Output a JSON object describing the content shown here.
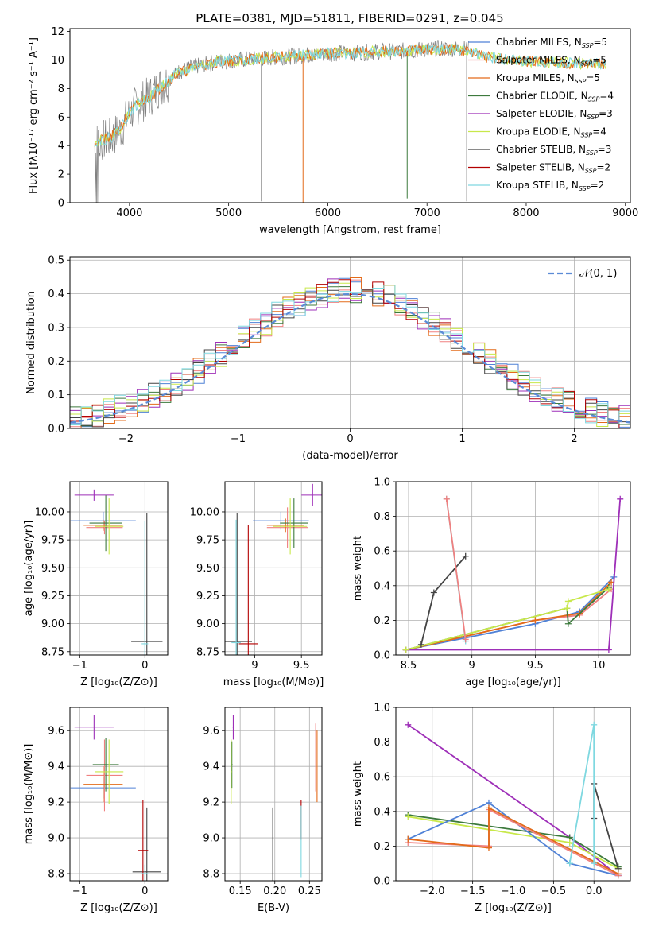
{
  "colors": {
    "chabrier_miles": "#4f81d6",
    "salpeter_miles": "#f08080",
    "kroupa_miles": "#e36b1a",
    "chabrier_elodie": "#3d7a3d",
    "salpeter_elodie": "#9e2fb8",
    "kroupa_elodie": "#c8e84a",
    "chabrier_stelib": "#444444",
    "salpeter_stelib": "#b30000",
    "kroupa_stelib": "#7fd8e0",
    "spectrum": "#808080",
    "normal": "#5b8bd6",
    "grid": "#b0b0b0"
  },
  "chart_data": [
    {
      "id": "spectrum",
      "type": "line",
      "title": "PLATE=0381, MJD=51811, FIBERID=0291, z=0.045",
      "xlabel": "wavelength [Angstrom, rest frame]",
      "ylabel": "Flux [fλ10⁻¹⁷ erg cm⁻² s⁻¹ A⁻¹]",
      "xlim": [
        3400,
        9050
      ],
      "ylim": [
        0,
        12.2
      ],
      "xticks": [
        4000,
        5000,
        6000,
        7000,
        8000,
        9000
      ],
      "yticks": [
        0,
        2,
        4,
        6,
        8,
        10,
        12
      ],
      "grid": false,
      "legend": "right",
      "spectrum_continuum": {
        "x": [
          3650,
          3800,
          3900,
          4000,
          4100,
          4200,
          4300,
          4400,
          4500,
          4700,
          4900,
          5100,
          5300,
          5500,
          5700,
          5900,
          6100,
          6300,
          6500,
          6700,
          6900,
          7100,
          7300,
          7400
        ],
        "y": [
          4.2,
          4.5,
          5.0,
          6.2,
          7.0,
          7.4,
          8.1,
          8.6,
          9.2,
          9.6,
          9.9,
          10.0,
          10.1,
          10.2,
          10.3,
          10.4,
          10.5,
          10.5,
          10.6,
          10.6,
          10.7,
          10.8,
          10.8,
          10.8
        ]
      },
      "model_continuum": {
        "x": [
          3650,
          3800,
          3900,
          4000,
          4100,
          4200,
          4300,
          4400,
          4500,
          4700,
          4900,
          5100,
          5300,
          5500,
          5700,
          5900,
          6100,
          6300,
          6500,
          6700,
          6900,
          7100,
          7300,
          7600,
          8000,
          8400,
          8800
        ],
        "y": [
          4.3,
          4.5,
          5.2,
          6.3,
          7.0,
          7.4,
          8.0,
          8.6,
          9.1,
          9.6,
          9.9,
          10.0,
          10.1,
          10.2,
          10.3,
          10.4,
          10.5,
          10.5,
          10.6,
          10.6,
          10.7,
          10.7,
          10.8,
          10.2,
          9.9,
          9.8,
          9.7
        ]
      },
      "series_legend": [
        {
          "label": "Chabrier MILES, N",
          "sub": "SSP",
          "value": "=5"
        },
        {
          "label": "Salpeter MILES, N",
          "sub": "SSP",
          "value": "=5"
        },
        {
          "label": "Kroupa MILES, N",
          "sub": "SSP",
          "value": "=5"
        },
        {
          "label": "Chabrier ELODIE, N",
          "sub": "SSP",
          "value": "=4"
        },
        {
          "label": "Salpeter ELODIE, N",
          "sub": "SSP",
          "value": "=3"
        },
        {
          "label": "Kroupa ELODIE, N",
          "sub": "SSP",
          "value": "=4"
        },
        {
          "label": "Chabrier STELIB, N",
          "sub": "SSP",
          "value": "=3"
        },
        {
          "label": "Salpeter STELIB, N",
          "sub": "SSP",
          "value": "=2"
        },
        {
          "label": "Kroupa STELIB, N",
          "sub": "SSP",
          "value": "=2"
        }
      ]
    },
    {
      "id": "residuals",
      "type": "line",
      "xlabel": "(data-model)/error",
      "ylabel": "Normed distribution",
      "xlim": [
        -2.5,
        2.5
      ],
      "ylim": [
        0,
        0.51
      ],
      "xticks": [
        -2,
        -1,
        0,
        1,
        2
      ],
      "ytick_labels": [
        "0.0",
        "0.1",
        "0.2",
        "0.3",
        "0.4",
        "0.5"
      ],
      "yticks": [
        0,
        0.1,
        0.2,
        0.3,
        0.4,
        0.5
      ],
      "grid": true,
      "legend": "top-right",
      "legend_label": "𝒩(0, 1)",
      "gaussian": {
        "mean": 0,
        "sigma": 1
      }
    },
    {
      "id": "z_age",
      "type": "scatter",
      "xlabel": "Z [log₁₀(Z/Z⊙)]",
      "ylabel": "age  [log₁₀(age/yr)]",
      "xlim": [
        -1.15,
        0.35
      ],
      "ylim": [
        8.72,
        10.27
      ],
      "xticks": [
        -1,
        0
      ],
      "yticks": [
        8.75,
        9.0,
        9.25,
        9.5,
        9.75,
        10.0
      ],
      "ytick_labels": [
        "8.75",
        "9.00",
        "9.25",
        "9.50",
        "9.75",
        "10.00"
      ],
      "grid": true,
      "points": [
        {
          "c": "chabrier_miles",
          "x": -0.64,
          "y": 9.92,
          "xerr": 0.5,
          "yerr": 0.08
        },
        {
          "c": "salpeter_miles",
          "x": -0.62,
          "y": 9.86,
          "xerr": 0.28,
          "yerr": 0.06
        },
        {
          "c": "kroupa_miles",
          "x": -0.64,
          "y": 9.88,
          "xerr": 0.3,
          "yerr": 0.05
        },
        {
          "c": "chabrier_elodie",
          "x": -0.6,
          "y": 9.9,
          "xerr": 0.25,
          "yerr": 0.25
        },
        {
          "c": "salpeter_elodie",
          "x": -0.78,
          "y": 10.15,
          "xerr": 0.3,
          "yerr": 0.05
        },
        {
          "c": "kroupa_elodie",
          "x": -0.55,
          "y": 9.87,
          "xerr": 0.22,
          "yerr": 0.25
        },
        {
          "c": "chabrier_stelib",
          "x": 0.03,
          "y": 8.84,
          "xerr": 0.24,
          "yerr": 1.15
        },
        {
          "c": "salpeter_stelib",
          "x": -0.03,
          "y": 8.83,
          "xerr": 0.0,
          "yerr": 0.0
        },
        {
          "c": "kroupa_stelib",
          "x": 0.0,
          "y": 8.82,
          "xerr": 0.05,
          "yerr": 1.1
        }
      ]
    },
    {
      "id": "mass_age",
      "type": "scatter",
      "xlabel": "mass [log₁₀(M/M⊙)]",
      "ylabel": "",
      "xlim": [
        8.68,
        9.72
      ],
      "ylim": [
        8.72,
        10.27
      ],
      "xticks": [
        9.0,
        9.5
      ],
      "yticks": [
        8.75,
        9.0,
        9.25,
        9.5,
        9.75,
        10.0
      ],
      "ytick_labels": [
        "8.75",
        "9.00",
        "9.25",
        "9.50",
        "9.75",
        "10.00"
      ],
      "grid": true,
      "points": [
        {
          "c": "chabrier_miles",
          "x": 9.28,
          "y": 9.92,
          "xerr": 0.3,
          "yerr": 0.08
        },
        {
          "c": "salpeter_miles",
          "x": 9.35,
          "y": 9.86,
          "xerr": 0.22,
          "yerr": 0.18
        },
        {
          "c": "kroupa_miles",
          "x": 9.33,
          "y": 9.88,
          "xerr": 0.2,
          "yerr": 0.06
        },
        {
          "c": "chabrier_elodie",
          "x": 9.42,
          "y": 9.9,
          "xerr": 0.15,
          "yerr": 0.22
        },
        {
          "c": "salpeter_elodie",
          "x": 9.62,
          "y": 10.15,
          "xerr": 0.12,
          "yerr": 0.1
        },
        {
          "c": "kroupa_elodie",
          "x": 9.38,
          "y": 9.87,
          "xerr": 0.18,
          "yerr": 0.25
        },
        {
          "c": "chabrier_stelib",
          "x": 8.81,
          "y": 8.84,
          "xerr": 0.16,
          "yerr": 1.15
        },
        {
          "c": "salpeter_stelib",
          "x": 8.93,
          "y": 8.82,
          "xerr": 0.1,
          "yerr": 1.06
        },
        {
          "c": "kroupa_stelib",
          "x": 8.8,
          "y": 8.83,
          "xerr": 0.05,
          "yerr": 1.1
        }
      ]
    },
    {
      "id": "age_weight",
      "type": "line",
      "xlabel": "age  [log₁₀(age/yr)]",
      "ylabel": "mass weight",
      "xlim": [
        8.4,
        10.25
      ],
      "ylim": [
        0,
        1.0
      ],
      "xticks": [
        8.5,
        9.0,
        9.5,
        10.0
      ],
      "ytick_labels": [
        "0.0",
        "0.2",
        "0.4",
        "0.6",
        "0.8",
        "1.0"
      ],
      "yticks": [
        0,
        0.2,
        0.4,
        0.6,
        0.8,
        1.0
      ],
      "grid": true,
      "series": [
        {
          "c": "chabrier_miles",
          "x": [
            8.48,
            9.5,
            9.85,
            10.12
          ],
          "y": [
            0.03,
            0.18,
            0.25,
            0.45
          ]
        },
        {
          "c": "salpeter_miles",
          "x": [
            8.48,
            9.5,
            9.85,
            10.1
          ],
          "y": [
            0.03,
            0.2,
            0.23,
            0.38
          ]
        },
        {
          "c": "kroupa_miles",
          "x": [
            8.48,
            9.5,
            9.85,
            10.1
          ],
          "y": [
            0.03,
            0.2,
            0.24,
            0.42
          ]
        },
        {
          "c": "chabrier_elodie",
          "x": [
            8.48,
            9.75,
            9.76,
            10.08
          ],
          "y": [
            0.03,
            0.27,
            0.18,
            0.39
          ]
        },
        {
          "c": "salpeter_elodie",
          "x": [
            8.48,
            10.08,
            10.17
          ],
          "y": [
            0.03,
            0.03,
            0.9
          ]
        },
        {
          "c": "kroupa_elodie",
          "x": [
            8.48,
            9.75,
            9.76,
            10.08
          ],
          "y": [
            0.03,
            0.27,
            0.31,
            0.38
          ]
        },
        {
          "c": "chabrier_stelib",
          "x": [
            8.6,
            8.7,
            8.95
          ],
          "y": [
            0.06,
            0.36,
            0.57
          ]
        },
        {
          "c": "kroupa_stelib",
          "x": [
            8.8,
            8.95
          ],
          "y": [
            0.9,
            0.08
          ]
        },
        {
          "c": "salpeter_miles",
          "x": [
            8.8,
            8.95
          ],
          "y": [
            0.9,
            0.09
          ]
        }
      ]
    },
    {
      "id": "z_mass",
      "type": "scatter",
      "xlabel": "Z [log₁₀(Z/Z⊙)]",
      "ylabel": "mass [log₁₀(M/M⊙)]",
      "xlim": [
        -1.15,
        0.35
      ],
      "ylim": [
        8.76,
        9.73
      ],
      "xticks": [
        -1,
        0
      ],
      "yticks": [
        8.8,
        9.0,
        9.2,
        9.4,
        9.6
      ],
      "ytick_labels": [
        "8.8",
        "9.0",
        "9.2",
        "9.4",
        "9.6"
      ],
      "grid": true,
      "points": [
        {
          "c": "chabrier_miles",
          "x": -0.64,
          "y": 9.28,
          "xerr": 0.5,
          "yerr": 0.06
        },
        {
          "c": "salpeter_miles",
          "x": -0.62,
          "y": 9.35,
          "xerr": 0.28,
          "yerr": 0.2
        },
        {
          "c": "kroupa_miles",
          "x": -0.64,
          "y": 9.3,
          "xerr": 0.3,
          "yerr": 0.1
        },
        {
          "c": "chabrier_elodie",
          "x": -0.6,
          "y": 9.41,
          "xerr": 0.2,
          "yerr": 0.15
        },
        {
          "c": "salpeter_elodie",
          "x": -0.78,
          "y": 9.62,
          "xerr": 0.3,
          "yerr": 0.07
        },
        {
          "c": "kroupa_elodie",
          "x": -0.55,
          "y": 9.37,
          "xerr": 0.22,
          "yerr": 0.18
        },
        {
          "c": "chabrier_stelib",
          "x": 0.03,
          "y": 8.81,
          "xerr": 0.22,
          "yerr": 0.36
        },
        {
          "c": "salpeter_stelib",
          "x": -0.03,
          "y": 8.93,
          "xerr": 0.08,
          "yerr": 0.28
        },
        {
          "c": "kroupa_stelib",
          "x": 0.0,
          "y": 8.8,
          "xerr": 0.05,
          "yerr": 0.05
        }
      ]
    },
    {
      "id": "ebv_mass",
      "type": "scatter",
      "xlabel": "E(B-V)",
      "ylabel": "",
      "xlim": [
        0.128,
        0.268
      ],
      "ylim": [
        8.76,
        9.73
      ],
      "xticks": [
        0.15,
        0.2,
        0.25
      ],
      "xtick_labels": [
        "0.15",
        "0.20",
        "0.25"
      ],
      "yticks": [
        8.8,
        9.0,
        9.2,
        9.4,
        9.6
      ],
      "ytick_labels": [
        "8.8",
        "9.0",
        "9.2",
        "9.4",
        "9.6"
      ],
      "grid": true,
      "points": [
        {
          "c": "salpeter_elodie",
          "x": 0.14,
          "y": 9.62,
          "xerr": 0.001,
          "yerr": 0.07
        },
        {
          "c": "chabrier_elodie",
          "x": 0.138,
          "y": 9.41,
          "xerr": 0.001,
          "yerr": 0.13
        },
        {
          "c": "kroupa_elodie",
          "x": 0.137,
          "y": 9.37,
          "xerr": 0.001,
          "yerr": 0.18
        },
        {
          "c": "chabrier_stelib",
          "x": 0.197,
          "y": 8.81,
          "xerr": 0.0,
          "yerr": 0.36
        },
        {
          "c": "salpeter_stelib",
          "x": 0.238,
          "y": 9.1,
          "xerr": 0.0,
          "yerr": 0.11
        },
        {
          "c": "kroupa_stelib",
          "x": 0.238,
          "y": 8.98,
          "xerr": 0.0,
          "yerr": 0.2
        },
        {
          "c": "salpeter_miles",
          "x": 0.259,
          "y": 9.45,
          "xerr": 0.0,
          "yerr": 0.19
        },
        {
          "c": "kroupa_miles",
          "x": 0.261,
          "y": 9.4,
          "xerr": 0.0,
          "yerr": 0.2
        }
      ]
    },
    {
      "id": "z_weight",
      "type": "line",
      "xlabel": "Z [log₁₀(Z/Z⊙)]",
      "ylabel": "mass weight",
      "xlim": [
        -2.45,
        0.45
      ],
      "ylim": [
        0,
        1.0
      ],
      "xticks": [
        -2.0,
        -1.5,
        -1.0,
        -0.5,
        0.0
      ],
      "xtick_labels": [
        "−2.0",
        "−1.5",
        "−1.0",
        "−0.5",
        "0.0"
      ],
      "yticks": [
        0,
        0.2,
        0.4,
        0.6,
        0.8,
        1.0
      ],
      "ytick_labels": [
        "0.0",
        "0.2",
        "0.4",
        "0.6",
        "0.8",
        "1.0"
      ],
      "grid": true,
      "series": [
        {
          "c": "salpeter_elodie",
          "x": [
            -2.3,
            -0.3,
            0.3
          ],
          "y": [
            0.9,
            0.25,
            0.03
          ]
        },
        {
          "c": "chabrier_elodie",
          "x": [
            -2.3,
            -0.3,
            0.3
          ],
          "y": [
            0.38,
            0.25,
            0.08
          ]
        },
        {
          "c": "kroupa_elodie",
          "x": [
            -2.3,
            -0.3,
            0.3
          ],
          "y": [
            0.37,
            0.22,
            0.07
          ]
        },
        {
          "c": "chabrier_miles",
          "x": [
            -2.3,
            -1.3,
            -0.3,
            0.3
          ],
          "y": [
            0.24,
            0.45,
            0.1,
            0.03
          ]
        },
        {
          "c": "salpeter_miles",
          "x": [
            -2.3,
            -1.3,
            -1.3,
            0.3
          ],
          "y": [
            0.22,
            0.2,
            0.41,
            0.03
          ]
        },
        {
          "c": "kroupa_miles",
          "x": [
            -2.3,
            -1.3,
            -1.3,
            0.3
          ],
          "y": [
            0.24,
            0.19,
            0.42,
            0.04
          ]
        },
        {
          "c": "chabrier_stelib",
          "x": [
            0.0,
            0.0,
            0.3
          ],
          "y": [
            0.36,
            0.56,
            0.07
          ]
        },
        {
          "c": "kroupa_stelib",
          "x": [
            -0.3,
            0.0,
            0.0
          ],
          "y": [
            0.1,
            0.9,
            0.1
          ]
        }
      ]
    }
  ]
}
